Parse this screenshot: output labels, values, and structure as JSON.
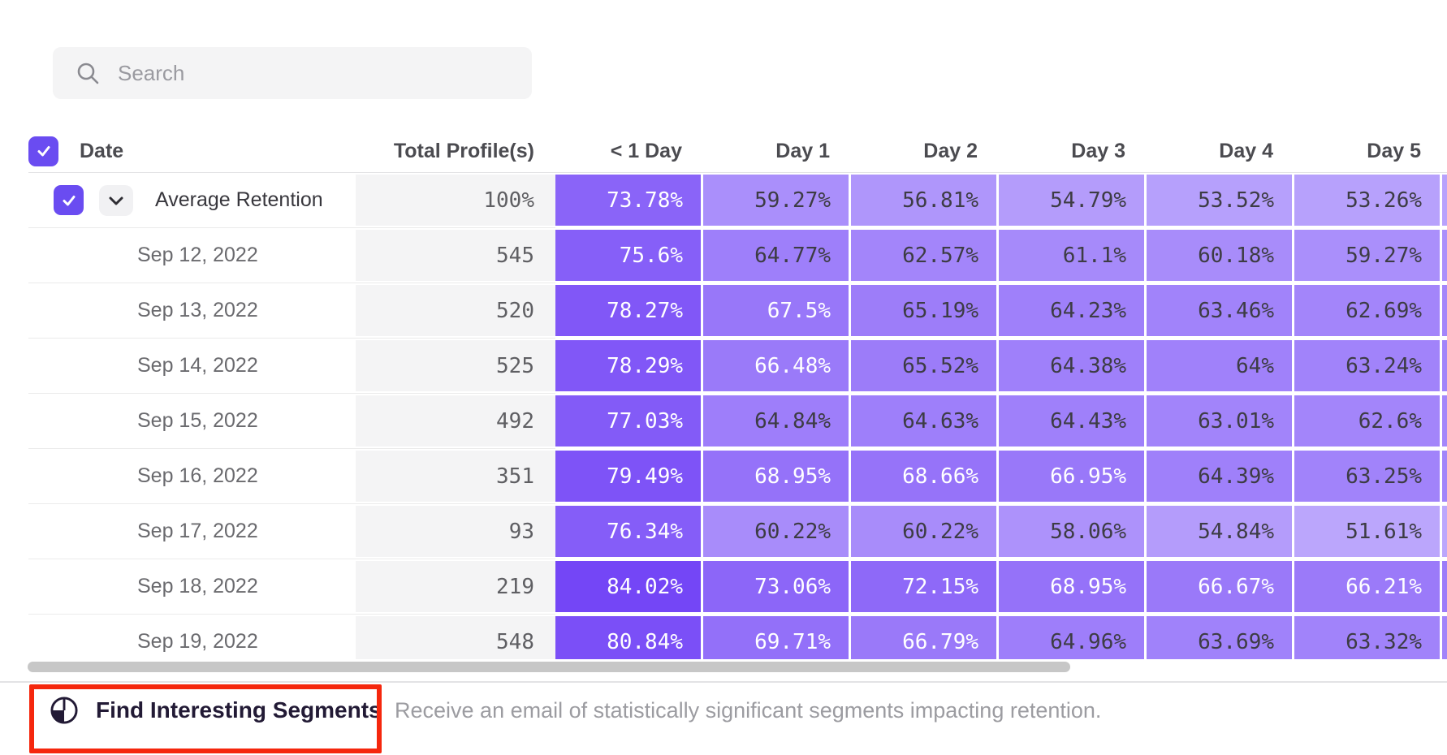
{
  "search": {
    "placeholder": "Search"
  },
  "table": {
    "date_header": "Date",
    "profiles_header": "Total Profile(s)",
    "heat_headers": [
      "< 1 Day",
      "Day 1",
      "Day 2",
      "Day 3",
      "Day 4",
      "Day 5"
    ],
    "rows": [
      {
        "label": "Average Retention",
        "is_average": true,
        "checked": true,
        "total": "100%",
        "values": [
          "73.78%",
          "59.27%",
          "56.81%",
          "54.79%",
          "53.52%",
          "53.26%"
        ]
      },
      {
        "label": "Sep 12, 2022",
        "total": "545",
        "values": [
          "75.6%",
          "64.77%",
          "62.57%",
          "61.1%",
          "60.18%",
          "59.27%"
        ]
      },
      {
        "label": "Sep 13, 2022",
        "total": "520",
        "values": [
          "78.27%",
          "67.5%",
          "65.19%",
          "64.23%",
          "63.46%",
          "62.69%"
        ]
      },
      {
        "label": "Sep 14, 2022",
        "total": "525",
        "values": [
          "78.29%",
          "66.48%",
          "65.52%",
          "64.38%",
          "64%",
          "63.24%"
        ]
      },
      {
        "label": "Sep 15, 2022",
        "total": "492",
        "values": [
          "77.03%",
          "64.84%",
          "64.63%",
          "64.43%",
          "63.01%",
          "62.6%"
        ]
      },
      {
        "label": "Sep 16, 2022",
        "total": "351",
        "values": [
          "79.49%",
          "68.95%",
          "68.66%",
          "66.95%",
          "64.39%",
          "63.25%"
        ]
      },
      {
        "label": "Sep 17, 2022",
        "total": "93",
        "values": [
          "76.34%",
          "60.22%",
          "60.22%",
          "58.06%",
          "54.84%",
          "51.61%"
        ]
      },
      {
        "label": "Sep 18, 2022",
        "total": "219",
        "values": [
          "84.02%",
          "73.06%",
          "72.15%",
          "68.95%",
          "66.67%",
          "66.21%"
        ]
      },
      {
        "label": "Sep 19, 2022",
        "total": "548",
        "values": [
          "80.84%",
          "69.71%",
          "66.79%",
          "64.96%",
          "63.69%",
          "63.32%"
        ]
      }
    ]
  },
  "footer": {
    "button_label": "Find Interesting Segments",
    "description": "Receive an email of statistically significant segments impacting retention."
  },
  "colors": {
    "accent_purple": "#6a4cf1",
    "heat_light": "#c9b9fd",
    "heat_dark": "#7243f6",
    "heat_text_dark": "#3d3c44",
    "heat_text_light": "#ffffff",
    "annotation_red": "#f5270d",
    "scrollbar": "#c7c7c7",
    "white_text_threshold": 66
  }
}
